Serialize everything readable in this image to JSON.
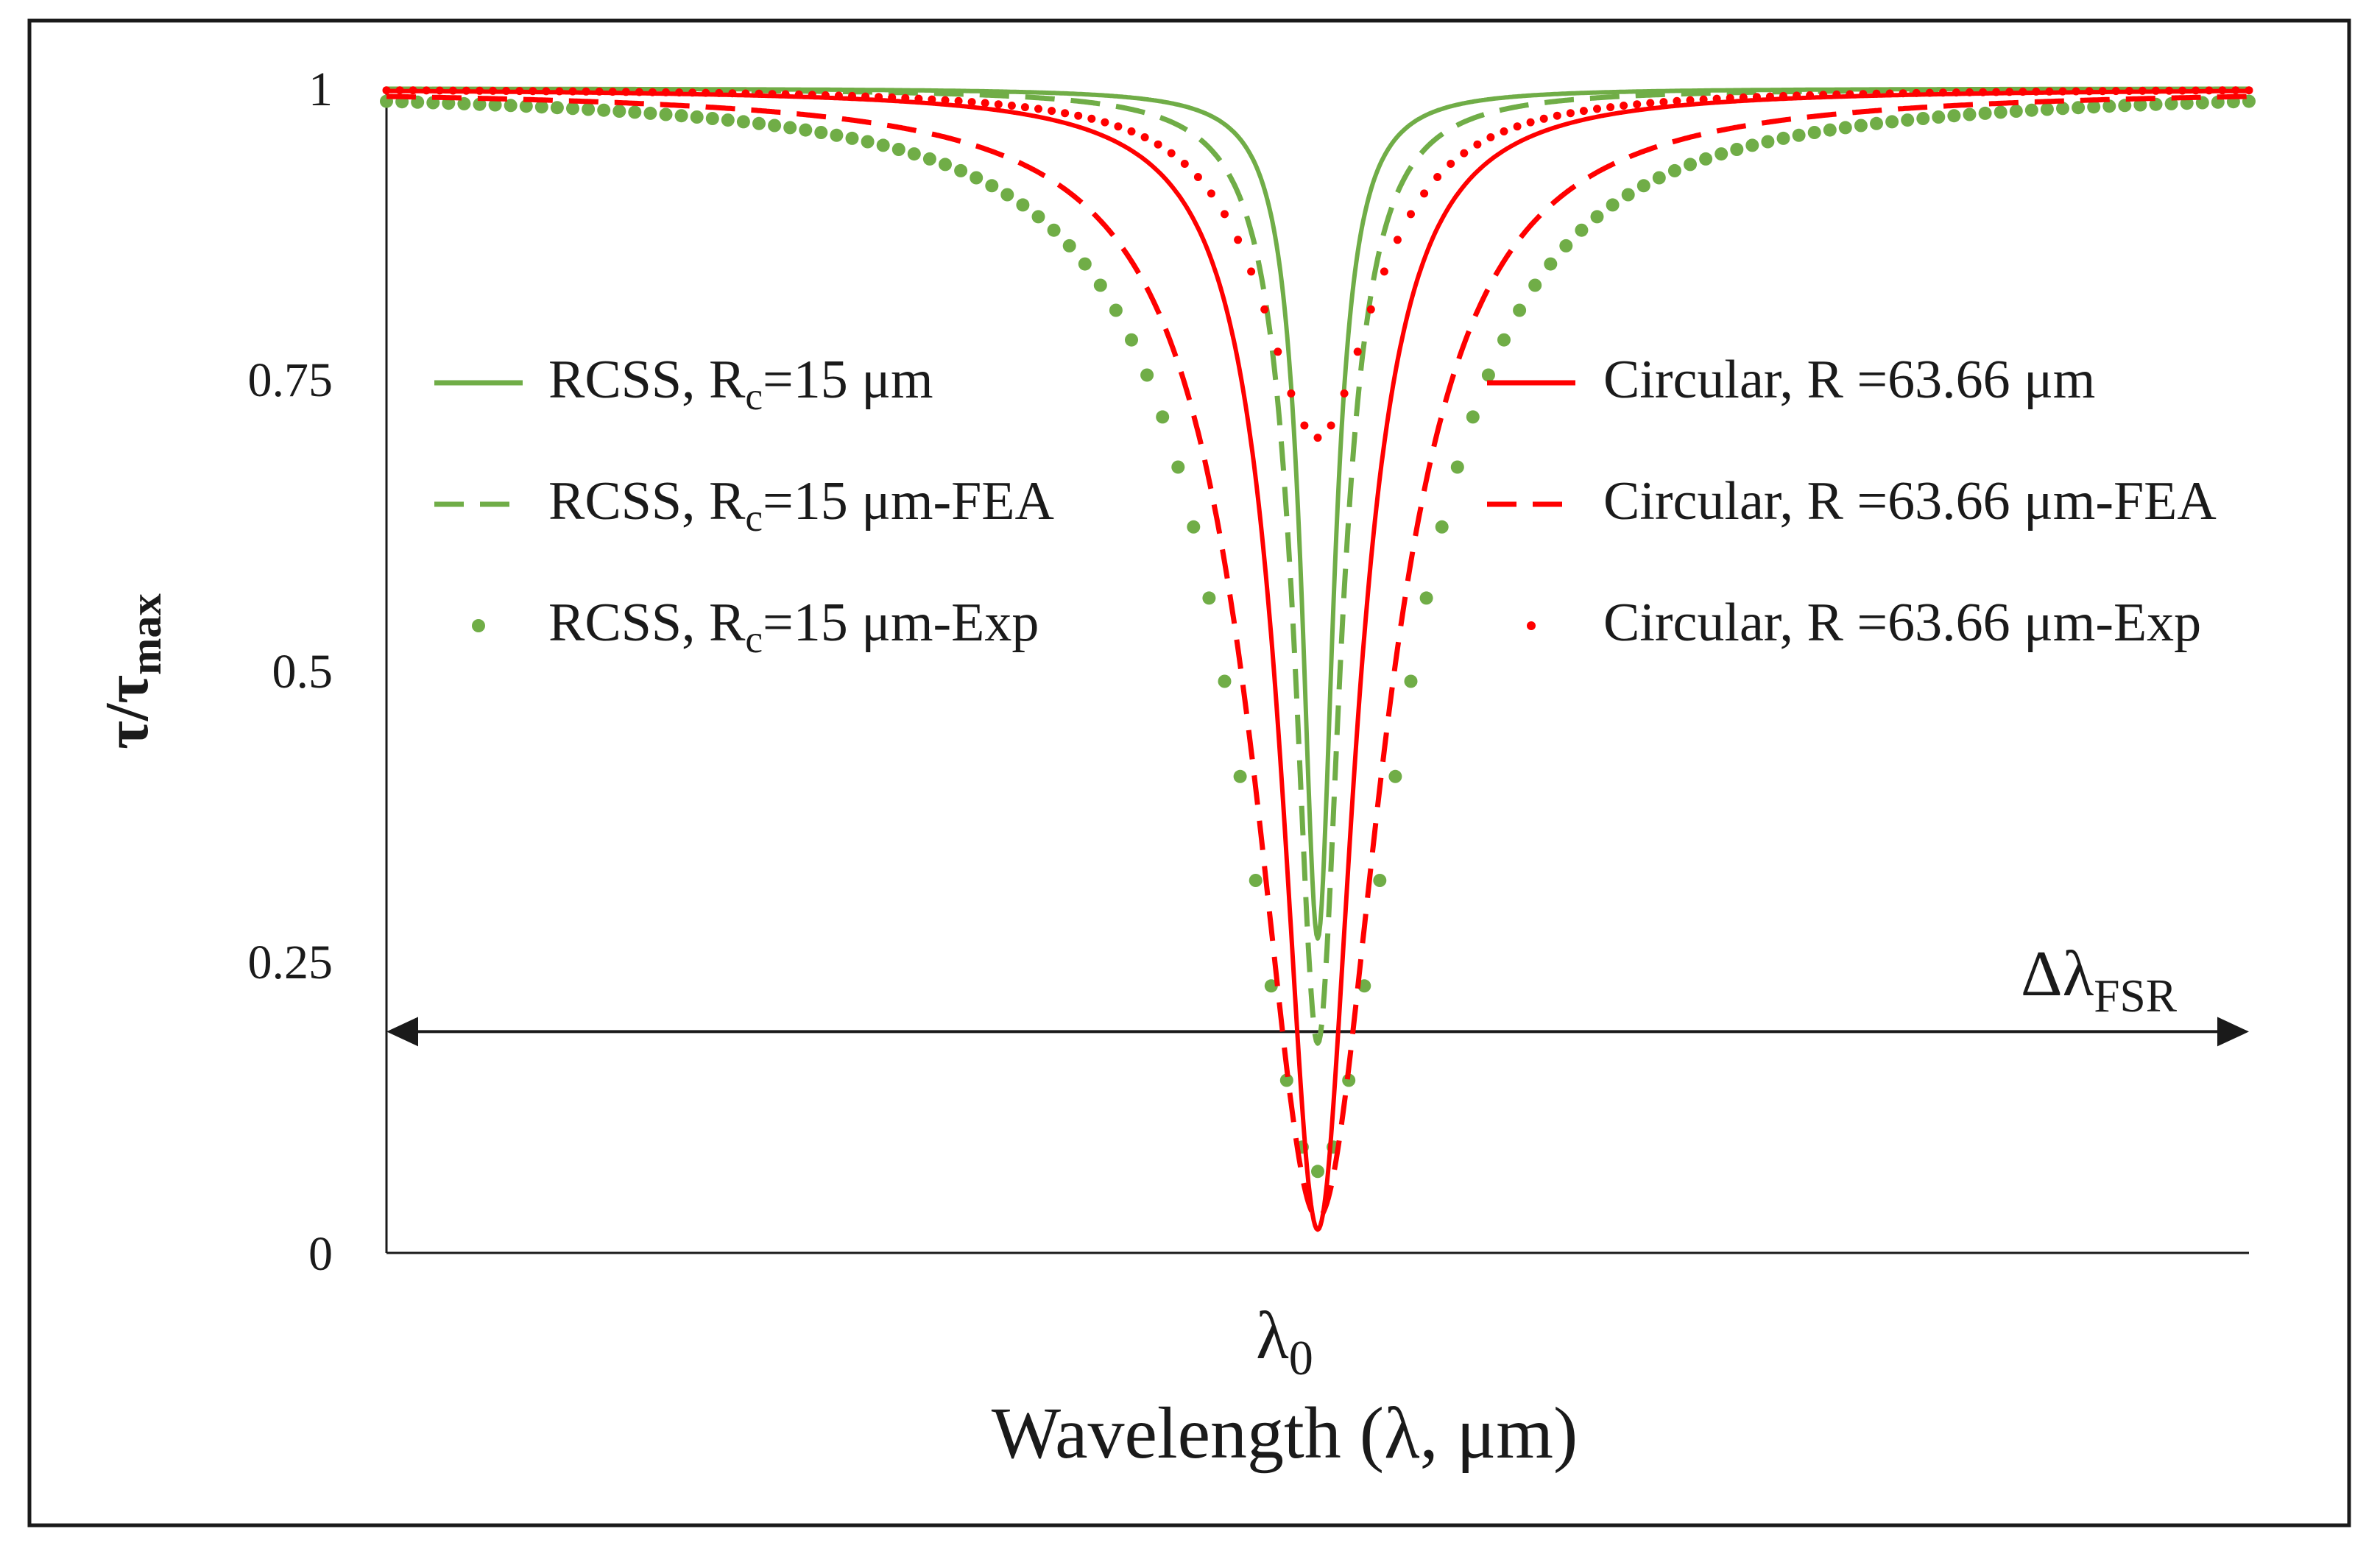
{
  "chart_data": {
    "type": "line",
    "title": "",
    "xlabel": "Wavelength (λ, μm)",
    "ylabel": {
      "base": "τ/τ",
      "sub": "max"
    },
    "x_center_label": {
      "base": "λ",
      "sub": "0"
    },
    "fsr_label": {
      "base": "Δλ",
      "sub": "FSR"
    },
    "xlim": [
      -1,
      1
    ],
    "ylim": [
      0,
      1
    ],
    "yticks": [
      {
        "value": 0,
        "label": "0"
      },
      {
        "value": 0.25,
        "label": "0.25"
      },
      {
        "value": 0.5,
        "label": "0.5"
      },
      {
        "value": 0.75,
        "label": "0.75"
      },
      {
        "value": 1,
        "label": "1"
      }
    ],
    "fsr_arrow_y": 0.19,
    "colors": {
      "green": "#70ad47",
      "red": "#ff0000",
      "text": "#1a1a1a"
    },
    "series": [
      {
        "key": "rcss",
        "legend": {
          "pre": "RCSS, R",
          "sub": "c",
          "post": "=15 μm"
        },
        "style": "solid",
        "color": "#70ad47",
        "depth": 0.73,
        "width": 0.021
      },
      {
        "key": "rcss_fea",
        "legend": {
          "pre": "RCSS, R",
          "sub": "c",
          "post": "=15 μm-FEA"
        },
        "style": "dashed",
        "color": "#70ad47",
        "depth": 0.82,
        "width": 0.03
      },
      {
        "key": "rcss_exp",
        "legend": {
          "pre": "RCSS, R",
          "sub": "c",
          "post": "=15 μm-Exp"
        },
        "style": "dots-large",
        "color": "#70ad47",
        "depth": 0.93,
        "width": 0.11
      },
      {
        "key": "circ",
        "legend": {
          "pre": "Circular, R =63.66 μm",
          "sub": "",
          "post": ""
        },
        "style": "solid",
        "color": "#ff0000",
        "depth": 0.98,
        "width": 0.048
      },
      {
        "key": "circ_fea",
        "legend": {
          "pre": "Circular, R =63.66 μm-FEA",
          "sub": "",
          "post": ""
        },
        "style": "dashed",
        "color": "#ff0000",
        "depth": 0.97,
        "width": 0.085
      },
      {
        "key": "circ_exp",
        "legend": {
          "pre": "Circular, R =63.66 μm-Exp",
          "sub": "",
          "post": ""
        },
        "style": "dots-small",
        "color": "#ff0000",
        "depth": 0.3,
        "width": 0.075
      }
    ]
  }
}
